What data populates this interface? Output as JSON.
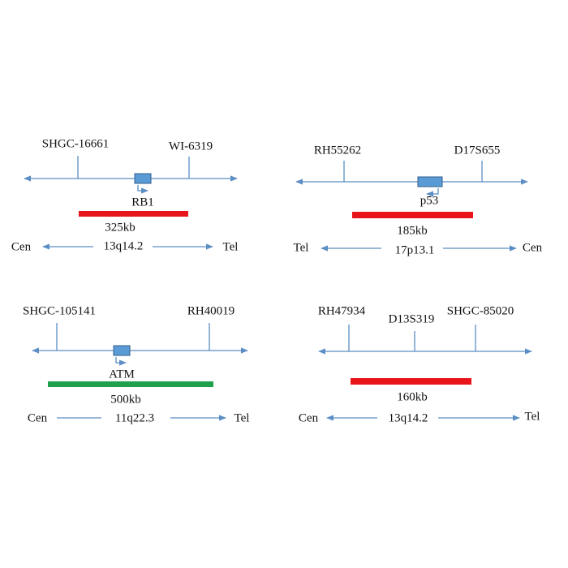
{
  "panels": [
    {
      "markers": [
        "SHGC-16661",
        "WI-6319"
      ],
      "gene": "RB1",
      "size": "325kb",
      "left": "Cen",
      "band": "13q14.2",
      "right": "Tel"
    },
    {
      "markers": [
        "RH55262",
        "D17S655"
      ],
      "gene": "p53",
      "size": "185kb",
      "left": "Tel",
      "band": "17p13.1",
      "right": "Cen"
    },
    {
      "markers": [
        "SHGC-105141",
        "RH40019"
      ],
      "gene": "ATM",
      "size": "500kb",
      "left": "Cen",
      "band": "11q22.3",
      "right": "Tel"
    },
    {
      "markers": [
        "RH47934",
        "D13S319",
        "SHGC-85020"
      ],
      "size": "160kb",
      "left": "Cen",
      "band": "13q14.2",
      "right": "Tel"
    }
  ]
}
